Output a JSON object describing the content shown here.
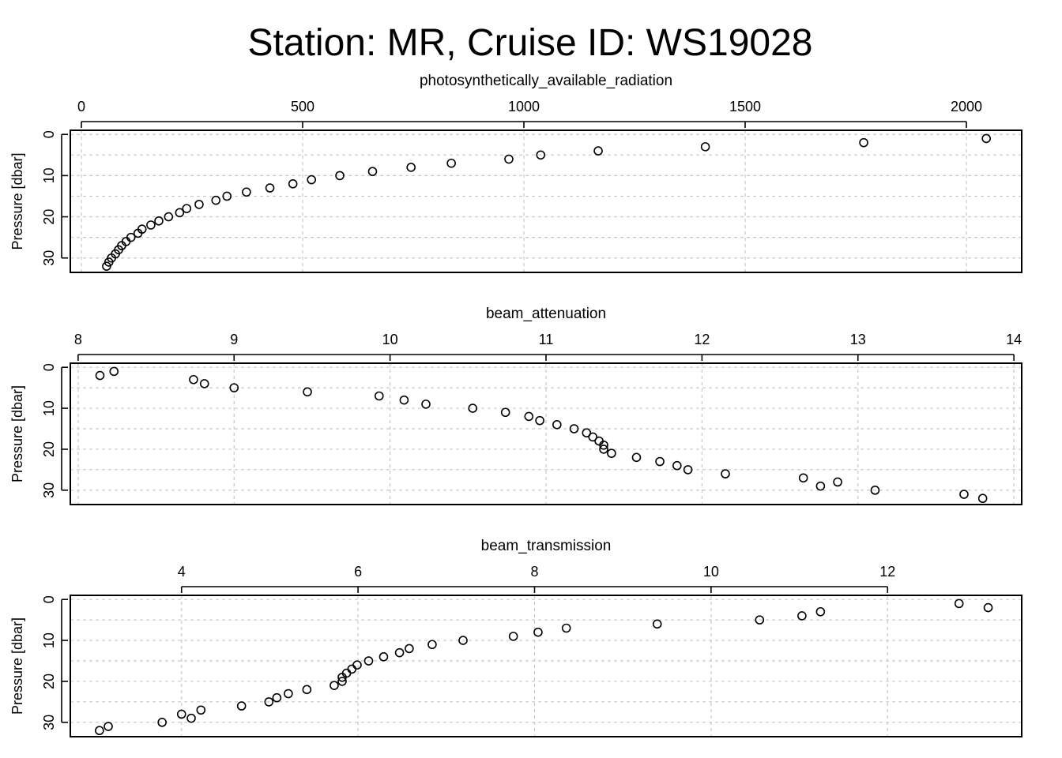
{
  "title": "Station: MR, Cruise ID: WS19028",
  "chart_data": [
    {
      "type": "scatter",
      "title": "photosynthetically_available_radiation",
      "xlabel": "photosynthetically_available_radiation",
      "ylabel": "Pressure [dbar]",
      "xlim": [
        -25,
        2125
      ],
      "ylim": [
        33.5,
        -1
      ],
      "y_reversed": true,
      "x_ticks": [
        0,
        500,
        1000,
        1500,
        2000
      ],
      "y_ticks": [
        0,
        10,
        20,
        30
      ],
      "x_axis_position": "top",
      "grid": true,
      "points": [
        {
          "x": 2045,
          "y": 1
        },
        {
          "x": 1768,
          "y": 2
        },
        {
          "x": 1410,
          "y": 3
        },
        {
          "x": 1168,
          "y": 4
        },
        {
          "x": 1038,
          "y": 5
        },
        {
          "x": 966,
          "y": 6
        },
        {
          "x": 836,
          "y": 7
        },
        {
          "x": 745,
          "y": 8
        },
        {
          "x": 658,
          "y": 9
        },
        {
          "x": 584,
          "y": 10
        },
        {
          "x": 520,
          "y": 11
        },
        {
          "x": 478,
          "y": 12
        },
        {
          "x": 426,
          "y": 13
        },
        {
          "x": 373,
          "y": 14
        },
        {
          "x": 329,
          "y": 15
        },
        {
          "x": 304,
          "y": 16
        },
        {
          "x": 266,
          "y": 17
        },
        {
          "x": 238,
          "y": 18
        },
        {
          "x": 222,
          "y": 19
        },
        {
          "x": 197,
          "y": 20
        },
        {
          "x": 175,
          "y": 21
        },
        {
          "x": 157,
          "y": 22
        },
        {
          "x": 137,
          "y": 23
        },
        {
          "x": 128,
          "y": 24
        },
        {
          "x": 112,
          "y": 25
        },
        {
          "x": 101,
          "y": 26
        },
        {
          "x": 91,
          "y": 27
        },
        {
          "x": 84,
          "y": 28
        },
        {
          "x": 77,
          "y": 29
        },
        {
          "x": 68,
          "y": 30
        },
        {
          "x": 62,
          "y": 31
        },
        {
          "x": 57,
          "y": 32
        }
      ]
    },
    {
      "type": "scatter",
      "title": "beam_attenuation",
      "xlabel": "beam_attenuation",
      "ylabel": "Pressure [dbar]",
      "xlim": [
        7.95,
        14.05
      ],
      "ylim": [
        33.5,
        -1
      ],
      "y_reversed": true,
      "x_ticks": [
        8,
        9,
        10,
        11,
        12,
        13,
        14
      ],
      "y_ticks": [
        0,
        10,
        20,
        30
      ],
      "x_axis_position": "top",
      "grid": true,
      "points": [
        {
          "x": 8.23,
          "y": 1
        },
        {
          "x": 8.14,
          "y": 2
        },
        {
          "x": 8.74,
          "y": 3
        },
        {
          "x": 8.81,
          "y": 4
        },
        {
          "x": 9.0,
          "y": 5
        },
        {
          "x": 9.47,
          "y": 6
        },
        {
          "x": 9.93,
          "y": 7
        },
        {
          "x": 10.09,
          "y": 8
        },
        {
          "x": 10.23,
          "y": 9
        },
        {
          "x": 10.53,
          "y": 10
        },
        {
          "x": 10.74,
          "y": 11
        },
        {
          "x": 10.89,
          "y": 12
        },
        {
          "x": 10.96,
          "y": 13
        },
        {
          "x": 11.07,
          "y": 14
        },
        {
          "x": 11.18,
          "y": 15
        },
        {
          "x": 11.26,
          "y": 16
        },
        {
          "x": 11.3,
          "y": 17
        },
        {
          "x": 11.34,
          "y": 18
        },
        {
          "x": 11.37,
          "y": 19
        },
        {
          "x": 11.37,
          "y": 20
        },
        {
          "x": 11.42,
          "y": 21
        },
        {
          "x": 11.58,
          "y": 22
        },
        {
          "x": 11.73,
          "y": 23
        },
        {
          "x": 11.84,
          "y": 24
        },
        {
          "x": 11.91,
          "y": 25
        },
        {
          "x": 12.15,
          "y": 26
        },
        {
          "x": 12.65,
          "y": 27
        },
        {
          "x": 12.87,
          "y": 28
        },
        {
          "x": 12.76,
          "y": 29
        },
        {
          "x": 13.11,
          "y": 30
        },
        {
          "x": 13.68,
          "y": 31
        },
        {
          "x": 13.8,
          "y": 32
        }
      ]
    },
    {
      "type": "scatter",
      "title": "beam_transmission",
      "xlabel": "beam_transmission",
      "ylabel": "Pressure [dbar]",
      "xlim": [
        2.74,
        13.52
      ],
      "ylim": [
        33.5,
        -1
      ],
      "y_reversed": true,
      "x_ticks": [
        4,
        6,
        8,
        10,
        12
      ],
      "y_ticks": [
        0,
        10,
        20,
        30
      ],
      "x_axis_position": "top",
      "grid": true,
      "points": [
        {
          "x": 12.81,
          "y": 1
        },
        {
          "x": 13.14,
          "y": 2
        },
        {
          "x": 11.24,
          "y": 3
        },
        {
          "x": 11.03,
          "y": 4
        },
        {
          "x": 10.55,
          "y": 5
        },
        {
          "x": 9.39,
          "y": 6
        },
        {
          "x": 8.36,
          "y": 7
        },
        {
          "x": 8.04,
          "y": 8
        },
        {
          "x": 7.76,
          "y": 9
        },
        {
          "x": 7.19,
          "y": 10
        },
        {
          "x": 6.84,
          "y": 11
        },
        {
          "x": 6.58,
          "y": 12
        },
        {
          "x": 6.47,
          "y": 13
        },
        {
          "x": 6.29,
          "y": 14
        },
        {
          "x": 6.12,
          "y": 15
        },
        {
          "x": 5.99,
          "y": 16
        },
        {
          "x": 5.93,
          "y": 17
        },
        {
          "x": 5.87,
          "y": 18
        },
        {
          "x": 5.82,
          "y": 19
        },
        {
          "x": 5.82,
          "y": 20
        },
        {
          "x": 5.73,
          "y": 21
        },
        {
          "x": 5.42,
          "y": 22
        },
        {
          "x": 5.21,
          "y": 23
        },
        {
          "x": 5.08,
          "y": 24
        },
        {
          "x": 4.99,
          "y": 25
        },
        {
          "x": 4.68,
          "y": 26
        },
        {
          "x": 4.22,
          "y": 27
        },
        {
          "x": 4.0,
          "y": 28
        },
        {
          "x": 4.11,
          "y": 29
        },
        {
          "x": 3.78,
          "y": 30
        },
        {
          "x": 3.17,
          "y": 31
        },
        {
          "x": 3.07,
          "y": 32
        }
      ]
    }
  ]
}
